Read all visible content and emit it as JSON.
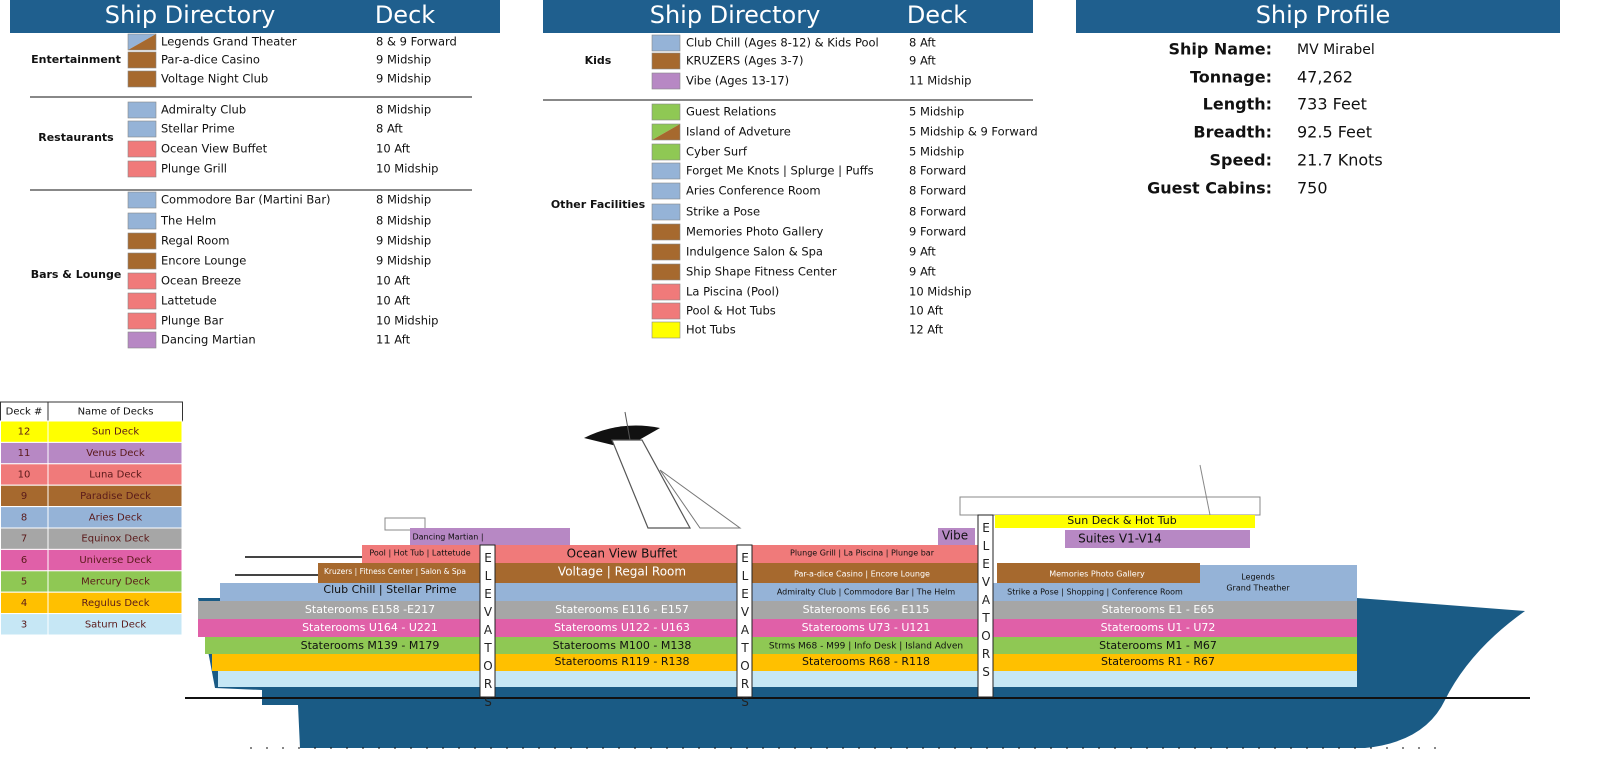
{
  "directory_left": {
    "title": "Ship Directory",
    "deck_header": "Deck",
    "groups": [
      {
        "name": "Entertainment",
        "items": [
          {
            "name": "Legends Grand Theater",
            "deck": "8 & 9 Forward",
            "color": [
              "#95b3d7",
              "#a6692e"
            ]
          },
          {
            "name": "Par-a-dice Casino",
            "deck": "9 Midship",
            "color": "#a6692e"
          },
          {
            "name": "Voltage Night Club",
            "deck": "9 Midship",
            "color": "#a6692e"
          }
        ]
      },
      {
        "name": "Restaurants",
        "items": [
          {
            "name": "Admiralty Club",
            "deck": "8 Midship",
            "color": "#95b3d7"
          },
          {
            "name": "Stellar Prime",
            "deck": "8 Aft",
            "color": "#95b3d7"
          },
          {
            "name": "Ocean View Buffet",
            "deck": "10 Aft",
            "color": "#f07a7a"
          },
          {
            "name": "Plunge Grill",
            "deck": "10 Midship",
            "color": "#f07a7a"
          }
        ]
      },
      {
        "name": "Bars & Lounge",
        "items": [
          {
            "name": "Commodore Bar (Martini Bar)",
            "deck": "8 Midship",
            "color": "#95b3d7"
          },
          {
            "name": "The Helm",
            "deck": "8 Midship",
            "color": "#95b3d7"
          },
          {
            "name": "Regal Room",
            "deck": "9 Midship",
            "color": "#a6692e"
          },
          {
            "name": "Encore Lounge",
            "deck": "9 Midship",
            "color": "#a6692e"
          },
          {
            "name": "Ocean Breeze",
            "deck": "10 Aft",
            "color": "#f07a7a"
          },
          {
            "name": "Lattetude",
            "deck": "10 Aft",
            "color": "#f07a7a"
          },
          {
            "name": "Plunge Bar",
            "deck": "10 Midship",
            "color": "#f07a7a"
          },
          {
            "name": "Dancing Martian",
            "deck": "11 Aft",
            "color": "#b788c4"
          }
        ]
      }
    ]
  },
  "directory_middle": {
    "title": "Ship Directory",
    "deck_header": "Deck",
    "groups": [
      {
        "name": "Kids",
        "items": [
          {
            "name": "Club Chill (Ages 8-12) & Kids Pool",
            "deck": "8 Aft",
            "color": "#95b3d7"
          },
          {
            "name": "KRUZERS (Ages 3-7)",
            "deck": "9 Aft",
            "color": "#a6692e"
          },
          {
            "name": "Vibe (Ages 13-17)",
            "deck": "11 Midship",
            "color": "#b788c4"
          }
        ]
      },
      {
        "name": "Other Facilities",
        "items": [
          {
            "name": "Guest Relations",
            "deck": "5 Midship",
            "color": "#8fc854"
          },
          {
            "name": "Island of Adveture",
            "deck": "5 Midship & 9 Forward",
            "color": [
              "#8fc854",
              "#a6692e"
            ]
          },
          {
            "name": "Cyber Surf",
            "deck": "5 Midship",
            "color": "#8fc854"
          },
          {
            "name": "Forget Me Knots | Splurge | Puffs",
            "deck": "8 Forward",
            "color": "#95b3d7"
          },
          {
            "name": "Aries Conference Room",
            "deck": "8 Forward",
            "color": "#95b3d7"
          },
          {
            "name": "Strike a Pose",
            "deck": "8 Forward",
            "color": "#95b3d7"
          },
          {
            "name": "Memories Photo Gallery",
            "deck": "9 Forward",
            "color": "#a6692e"
          },
          {
            "name": "Indulgence Salon & Spa",
            "deck": "9 Aft",
            "color": "#a6692e"
          },
          {
            "name": "Ship Shape Fitness Center",
            "deck": "9 Aft",
            "color": "#a6692e"
          },
          {
            "name": "La Piscina (Pool)",
            "deck": "10 Midship",
            "color": "#f07a7a"
          },
          {
            "name": "Pool & Hot Tubs",
            "deck": "10 Aft",
            "color": "#f07a7a"
          },
          {
            "name": "Hot Tubs",
            "deck": "12 Aft",
            "color": "#ffff00"
          }
        ]
      }
    ]
  },
  "profile": {
    "title": "Ship Profile",
    "rows": [
      {
        "label": "Ship Name:",
        "value": "MV Mirabel"
      },
      {
        "label": "Tonnage:",
        "value": "47,262"
      },
      {
        "label": "Length:",
        "value": "733 Feet"
      },
      {
        "label": "Breadth:",
        "value": "92.5 Feet"
      },
      {
        "label": "Speed:",
        "value": "21.7 Knots"
      },
      {
        "label": "Guest Cabins:",
        "value": "750"
      }
    ]
  },
  "deck_table": {
    "headers": [
      "Deck #",
      "Name of Decks"
    ],
    "rows": [
      {
        "number": 12,
        "name": "Sun Deck",
        "color": "#ffff00"
      },
      {
        "number": 11,
        "name": "Venus Deck",
        "color": "#b788c4"
      },
      {
        "number": 10,
        "name": "Luna Deck",
        "color": "#f07a7a"
      },
      {
        "number": 9,
        "name": "Paradise Deck",
        "color": "#a6692e"
      },
      {
        "number": 8,
        "name": "Aries Deck",
        "color": "#95b3d7"
      },
      {
        "number": 7,
        "name": "Equinox Deck",
        "color": "#a6a6a6"
      },
      {
        "number": 6,
        "name": "Universe Deck",
        "color": "#e060a8"
      },
      {
        "number": 5,
        "name": "Mercury Deck",
        "color": "#8fc854"
      },
      {
        "number": 4,
        "name": "Regulus Deck",
        "color": "#ffc000"
      },
      {
        "number": 3,
        "name": "Saturn Deck",
        "color": "#c6e7f5"
      }
    ]
  },
  "ship": {
    "elevators": "ELEVATORS",
    "labels": [
      "Sun Deck & Hot Tub",
      "Dancing Martian |",
      "Vibe",
      "Suites V1-V14",
      "Pool | Hot Tub | Lattetude",
      "Ocean View Buffet",
      "Plunge Grill | La Piscina | Plunge bar",
      "Kruzers | Fitness Center | Salon & Spa",
      "Voltage | Regal Room",
      "Par-a-dice Casino | Encore Lounge",
      "Memories Photo Gallery",
      "Club Chill | Stellar Prime",
      "Admiralty Club | Commodore Bar | The Helm",
      "Strike a Pose | Shopping | Conference Room",
      "Legends",
      "Grand Theather",
      "Staterooms E158 -E217",
      "Staterooms E116 - E157",
      "Staterooms E66 - E115",
      "Staterooms E1 - E65",
      "Staterooms U164 - U221",
      "Staterooms U122 - U163",
      "Staterooms U73 - U121",
      "Staterooms U1 - U72",
      "Staterooms M139 - M179",
      "Staterooms M100 - M138",
      "Strms M68 - M99 | Info Desk | Island Adven",
      "Staterooms M1 - M67",
      "Staterooms R119 - R138",
      "Staterooms R68 - R118",
      "Staterooms R1 - R67"
    ]
  }
}
